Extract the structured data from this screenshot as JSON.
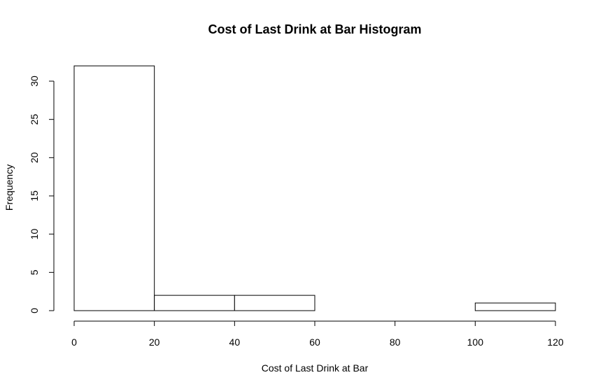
{
  "chart_data": {
    "type": "bar",
    "title": "Cost of Last Drink at Bar Histogram",
    "xlabel": "Cost of Last Drink at Bar",
    "ylabel": "Frequency",
    "bins": [
      {
        "start": 0,
        "end": 20,
        "count": 32
      },
      {
        "start": 20,
        "end": 40,
        "count": 2
      },
      {
        "start": 40,
        "end": 60,
        "count": 2
      },
      {
        "start": 60,
        "end": 80,
        "count": 0
      },
      {
        "start": 80,
        "end": 100,
        "count": 0
      },
      {
        "start": 100,
        "end": 120,
        "count": 1
      }
    ],
    "xlim": [
      0,
      120
    ],
    "ylim": [
      0,
      32
    ],
    "xticks": [
      "0",
      "20",
      "40",
      "60",
      "80",
      "100",
      "120"
    ],
    "yticks": [
      "0",
      "5",
      "10",
      "15",
      "20",
      "25",
      "30"
    ],
    "grid": false,
    "legend": "none"
  }
}
